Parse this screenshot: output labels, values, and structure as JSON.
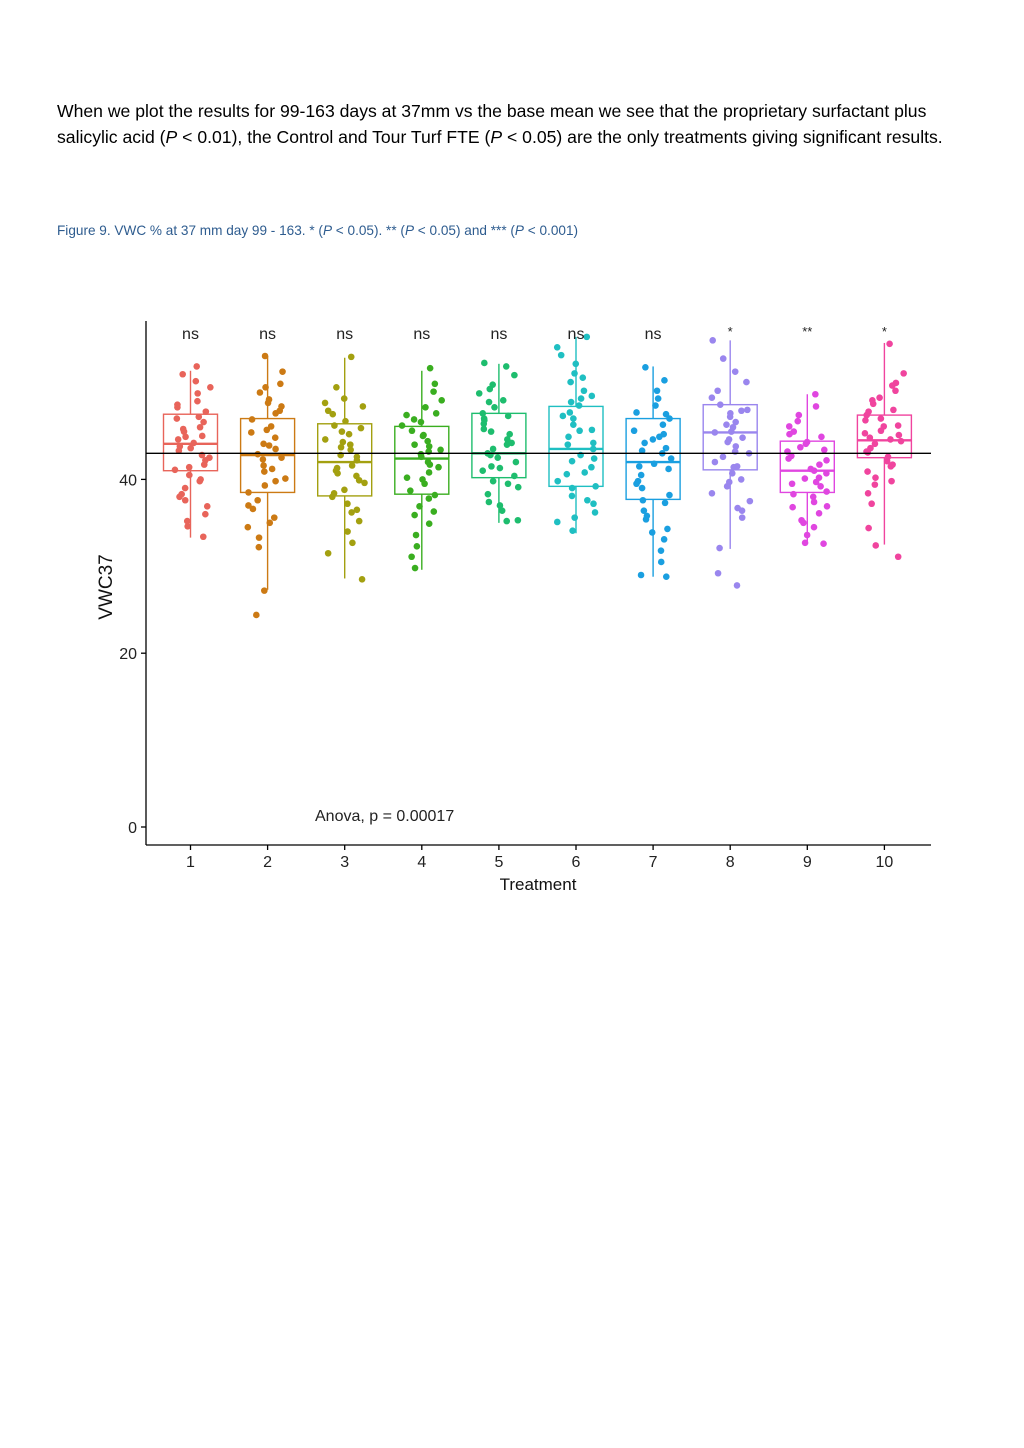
{
  "paragraph": {
    "t1": "When we plot the results for 99-163 days at 37mm vs the base mean we see that the proprietary surfactant plus salicylic acid (",
    "p1": "P",
    "t2": " < 0.01), the Control and Tour Turf FTE (",
    "p2": "P",
    "t3": " < 0.05) are the only treatments giving significant results."
  },
  "caption": {
    "label": "Figure 9. VWC % at 37 mm day 99 - 163",
    "s1": ". * (",
    "p1": "P",
    "s2": " < 0.05). ** (",
    "p2": "P",
    "s3": " < 0.05) and *** (",
    "p3": "P",
    "s4": " < 0.001)"
  },
  "chart_data": {
    "type": "box-jitter",
    "xlabel": "Treatment",
    "ylabel": "VWC37",
    "yticks": [
      0,
      20,
      40
    ],
    "ylim": [
      0,
      58
    ],
    "annotation": "Anova, p = 0.00017",
    "reference_line": 43.0,
    "categories": [
      "1",
      "2",
      "3",
      "4",
      "5",
      "6",
      "7",
      "8",
      "9",
      "10"
    ],
    "significance": [
      "ns",
      "ns",
      "ns",
      "ns",
      "ns",
      "ns",
      "ns",
      "*",
      "**",
      "*"
    ],
    "colors": [
      "#e8645a",
      "#cc7a14",
      "#a3a010",
      "#3aae20",
      "#1ebd6e",
      "#1fbfc2",
      "#1a9fe0",
      "#9a86ee",
      "#e046e0",
      "#f0449e"
    ],
    "boxes": [
      {
        "min": 33.3,
        "q1": 41.0,
        "median": 44.1,
        "q3": 47.5,
        "max": 52.5
      },
      {
        "min": 27.3,
        "q1": 38.5,
        "median": 42.8,
        "q3": 47.0,
        "max": 54.2
      },
      {
        "min": 28.6,
        "q1": 38.1,
        "median": 42.0,
        "q3": 46.4,
        "max": 54.0
      },
      {
        "min": 29.6,
        "q1": 38.3,
        "median": 42.4,
        "q3": 46.1,
        "max": 52.5
      },
      {
        "min": 35.0,
        "q1": 40.2,
        "median": 43.0,
        "q3": 47.6,
        "max": 53.3
      },
      {
        "min": 33.8,
        "q1": 39.2,
        "median": 43.5,
        "q3": 48.4,
        "max": 56.4
      },
      {
        "min": 28.8,
        "q1": 37.7,
        "median": 42.0,
        "q3": 47.0,
        "max": 53.0
      },
      {
        "min": 32.0,
        "q1": 41.1,
        "median": 45.4,
        "q3": 48.6,
        "max": 56.0
      },
      {
        "min": 32.6,
        "q1": 38.5,
        "median": 41.0,
        "q3": 44.4,
        "max": 49.8
      },
      {
        "min": 32.5,
        "q1": 42.5,
        "median": 44.5,
        "q3": 47.4,
        "max": 55.7
      }
    ],
    "points": [
      [
        53.0,
        52.1,
        51.3,
        50.6,
        49.9,
        49.0,
        48.3,
        47.8,
        47.2,
        46.6,
        46.0,
        45.5,
        45.0,
        44.6,
        44.2,
        43.8,
        43.3,
        42.8,
        42.2,
        41.7,
        41.1,
        40.5,
        39.8,
        39.0,
        38.3,
        37.6,
        36.9,
        36.0,
        35.2,
        34.6,
        33.4,
        48.6,
        47.0,
        45.8,
        44.9,
        43.6,
        42.5,
        41.4,
        40.0,
        38.0
      ],
      [
        54.2,
        52.4,
        51.0,
        50.0,
        49.2,
        48.4,
        47.6,
        46.9,
        46.1,
        45.4,
        44.8,
        44.1,
        43.5,
        42.9,
        42.3,
        41.6,
        40.9,
        40.1,
        39.3,
        38.5,
        37.6,
        36.6,
        35.6,
        34.5,
        33.3,
        32.2,
        27.2,
        24.4,
        47.9,
        45.7,
        43.9,
        42.5,
        41.2,
        39.8,
        37.0,
        35.0,
        50.6,
        48.8
      ],
      [
        54.1,
        50.6,
        49.3,
        48.4,
        47.5,
        46.7,
        45.9,
        45.2,
        44.6,
        44.0,
        43.4,
        42.8,
        42.2,
        41.6,
        41.0,
        40.4,
        39.6,
        38.8,
        38.0,
        37.2,
        36.2,
        35.2,
        34.0,
        32.7,
        31.5,
        28.5,
        47.9,
        46.2,
        44.3,
        42.6,
        41.3,
        39.9,
        38.4,
        36.5,
        43.7,
        45.5,
        48.8,
        40.7
      ],
      [
        52.8,
        51.0,
        50.1,
        49.1,
        48.3,
        47.6,
        46.9,
        46.2,
        45.6,
        45.0,
        44.4,
        43.8,
        43.2,
        42.6,
        42.0,
        41.4,
        40.8,
        40.2,
        39.5,
        38.7,
        37.8,
        36.9,
        35.9,
        34.9,
        33.6,
        32.3,
        31.1,
        29.8,
        47.4,
        45.1,
        43.4,
        41.7,
        40.0,
        38.2,
        36.3,
        44.0,
        42.9,
        46.6
      ],
      [
        53.4,
        52.0,
        50.9,
        49.9,
        49.1,
        48.3,
        47.6,
        47.0,
        46.4,
        45.8,
        45.2,
        44.6,
        44.0,
        43.5,
        43.0,
        42.5,
        42.0,
        41.5,
        41.0,
        40.4,
        39.8,
        39.1,
        38.3,
        37.4,
        36.4,
        35.3,
        48.9,
        47.3,
        45.5,
        44.2,
        42.8,
        41.3,
        39.5,
        37.0,
        35.2,
        53.0,
        50.4,
        46.8
      ],
      [
        56.4,
        55.2,
        54.3,
        53.3,
        52.2,
        51.2,
        50.2,
        49.3,
        48.5,
        47.7,
        47.0,
        46.3,
        45.6,
        44.9,
        44.2,
        43.5,
        42.8,
        42.1,
        41.4,
        40.6,
        39.8,
        39.0,
        38.1,
        37.2,
        36.2,
        35.1,
        34.1,
        48.9,
        47.3,
        45.7,
        44.0,
        42.4,
        40.8,
        39.2,
        37.6,
        35.6,
        51.7,
        49.6
      ],
      [
        52.9,
        51.4,
        50.2,
        49.3,
        48.5,
        47.7,
        47.0,
        46.3,
        45.6,
        44.9,
        44.2,
        43.6,
        43.0,
        42.4,
        41.8,
        41.2,
        40.5,
        39.8,
        39.0,
        38.2,
        37.3,
        36.4,
        35.4,
        34.3,
        33.1,
        31.8,
        30.5,
        29.0,
        28.8,
        47.5,
        45.2,
        43.3,
        41.5,
        39.5,
        37.6,
        35.8,
        33.9,
        44.6
      ],
      [
        56.0,
        53.9,
        52.4,
        51.2,
        50.2,
        49.4,
        48.6,
        47.9,
        47.2,
        46.6,
        46.0,
        45.4,
        44.8,
        44.3,
        43.8,
        43.2,
        42.6,
        42.0,
        41.4,
        40.7,
        40.0,
        39.2,
        38.4,
        37.5,
        36.4,
        35.6,
        32.1,
        29.2,
        27.8,
        48.0,
        46.3,
        44.6,
        43.0,
        41.5,
        39.7,
        36.7,
        45.5,
        47.6
      ],
      [
        49.8,
        48.4,
        47.4,
        46.7,
        46.1,
        45.5,
        44.9,
        44.3,
        43.7,
        43.2,
        42.7,
        42.2,
        41.7,
        41.2,
        40.7,
        40.2,
        39.7,
        39.2,
        38.6,
        38.0,
        37.4,
        36.8,
        36.1,
        35.3,
        34.5,
        33.6,
        32.6,
        44.1,
        42.4,
        41.0,
        39.5,
        38.3,
        36.9,
        35.0,
        32.7,
        45.2,
        43.4,
        40.1
      ],
      [
        55.6,
        52.2,
        51.1,
        50.2,
        49.4,
        48.7,
        48.0,
        47.4,
        46.8,
        46.2,
        45.6,
        45.1,
        44.6,
        44.1,
        43.6,
        43.1,
        42.6,
        42.1,
        41.5,
        40.9,
        40.2,
        39.4,
        38.4,
        37.2,
        34.4,
        32.4,
        31.1,
        47.8,
        46.1,
        44.4,
        43.2,
        41.7,
        39.8,
        47.0,
        45.3,
        44.8,
        49.1,
        50.8
      ]
    ]
  }
}
